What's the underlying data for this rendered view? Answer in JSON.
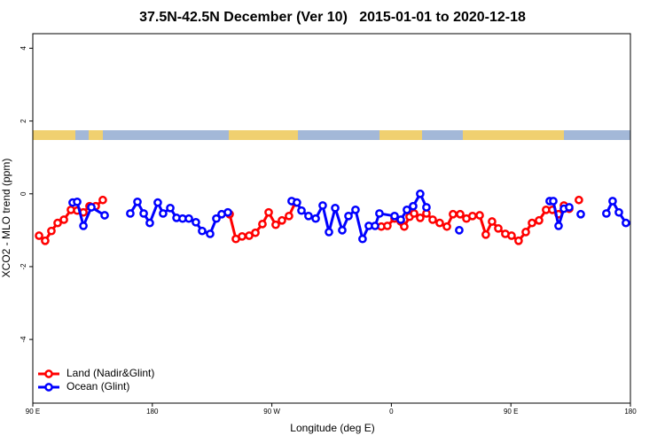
{
  "chart_data": {
    "type": "line",
    "title": "37.5N-42.5N December (Ver 10)   2015-01-01 to 2020-12-18",
    "xlabel": "Longitude (deg E)",
    "ylabel": "XCO2 - MLO trend (ppm)",
    "xlim": [
      90,
      540
    ],
    "xticks": [
      {
        "value": 90,
        "label": "90 E"
      },
      180,
      {
        "value": 270,
        "label": "90 W"
      },
      {
        "value": 360,
        "label": "0"
      },
      {
        "value": 450,
        "label": "90 E"
      },
      {
        "value": 540,
        "label": "180"
      }
    ],
    "ylim": [
      -5.75,
      4.4
    ],
    "yticks": [
      4,
      2,
      0,
      -2,
      -4
    ],
    "legend": "bottom-left",
    "series": [
      {
        "name": "Land (Nadir&Glint)",
        "color": "#ff0000",
        "x": [
          94.7,
          99.3,
          104.0,
          108.7,
          113.4,
          118.7,
          123.4,
          128.1,
          132.7,
          137.4,
          142.7,
          null,
          238.2,
          242.9,
          247.6,
          252.9,
          257.6,
          262.9,
          267.6,
          272.9,
          277.6,
          282.9,
          287.6,
          null,
          352.4,
          357.0,
          362.4,
          367.1,
          369.7,
          373.7,
          377.1,
          381.7,
          386.4,
          391.1,
          396.4,
          401.8,
          406.4,
          411.8,
          416.5,
          421.1,
          426.5,
          431.1,
          435.8,
          440.5,
          445.8,
          450.5,
          455.8,
          461.2,
          465.9,
          471.2,
          476.5,
          481.2,
          485.9,
          489.9,
          493.9,
          null,
          501.2
        ],
        "values": [
          -1.15,
          -1.29,
          -1.02,
          -0.8,
          -0.71,
          -0.44,
          -0.46,
          -0.51,
          -0.34,
          -0.34,
          -0.17,
          null,
          -0.56,
          -1.24,
          -1.17,
          -1.15,
          -1.07,
          -0.83,
          -0.51,
          -0.85,
          -0.73,
          -0.61,
          -0.24,
          null,
          -0.9,
          -0.88,
          -0.68,
          -0.76,
          -0.9,
          -0.63,
          -0.54,
          -0.66,
          -0.54,
          -0.71,
          -0.8,
          -0.9,
          -0.56,
          -0.56,
          -0.68,
          -0.61,
          -0.59,
          -1.12,
          -0.76,
          -0.95,
          -1.1,
          -1.15,
          -1.29,
          -1.05,
          -0.8,
          -0.73,
          -0.44,
          -0.44,
          -0.56,
          -0.32,
          -0.41,
          null,
          -0.17
        ]
      },
      {
        "name": "Ocean (Glint)",
        "color": "#0000ff",
        "x": [
          120.0,
          123.4,
          128.1,
          134.1,
          144.1,
          null,
          163.4,
          168.8,
          173.5,
          178.1,
          184.1,
          188.1,
          193.5,
          198.2,
          202.8,
          207.5,
          212.8,
          217.5,
          223.5,
          228.2,
          232.2,
          236.9,
          null,
          284.9,
          288.9,
          292.3,
          297.6,
          303.0,
          308.3,
          313.0,
          317.7,
          323.0,
          327.7,
          333.0,
          338.3,
          343.0,
          347.7,
          351.0,
          362.4,
          367.1,
          371.7,
          376.4,
          381.7,
          386.4,
          null,
          411.1,
          null,
          479.2,
          481.9,
          485.9,
          489.9,
          493.9,
          null,
          502.6,
          null,
          521.9,
          526.6,
          531.3,
          536.6
        ],
        "values": [
          -0.24,
          -0.22,
          -0.88,
          -0.37,
          -0.59,
          null,
          -0.54,
          -0.22,
          -0.54,
          -0.8,
          -0.24,
          -0.54,
          -0.39,
          -0.66,
          -0.68,
          -0.68,
          -0.78,
          -1.02,
          -1.1,
          -0.68,
          -0.56,
          -0.51,
          null,
          -0.2,
          -0.24,
          -0.46,
          -0.61,
          -0.68,
          -0.32,
          -1.05,
          -0.39,
          -1.0,
          -0.61,
          -0.44,
          -1.24,
          -0.88,
          -0.88,
          -0.54,
          -0.61,
          -0.71,
          -0.44,
          -0.34,
          0.0,
          -0.37,
          null,
          -1.0,
          null,
          -0.2,
          -0.2,
          -0.88,
          -0.41,
          -0.37,
          null,
          -0.56,
          null,
          -0.54,
          -0.2,
          -0.51,
          -0.8
        ]
      }
    ]
  }
}
